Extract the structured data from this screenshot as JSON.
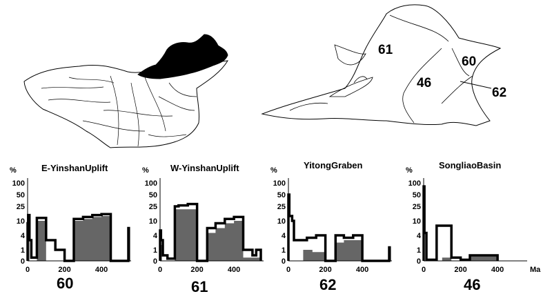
{
  "maps": {
    "regions": [
      {
        "label": "61"
      },
      {
        "label": "60"
      },
      {
        "label": "46"
      },
      {
        "label": "62"
      }
    ]
  },
  "chart_data": [
    {
      "type": "histogram-step",
      "id": "60",
      "title": "E-YinshanUplift",
      "ylabel": "%",
      "yticks": [
        "100",
        "50",
        "25",
        "10",
        "4",
        "1",
        "0"
      ],
      "xticks": [
        "0",
        "200",
        "400"
      ],
      "xlim": [
        0,
        560
      ],
      "caption": "60",
      "outline": [
        [
          0,
          0
        ],
        [
          0,
          9
        ],
        [
          3,
          9
        ],
        [
          3,
          16
        ],
        [
          10,
          16
        ],
        [
          10,
          3
        ],
        [
          20,
          3
        ],
        [
          20,
          0.3
        ],
        [
          50,
          0.3
        ],
        [
          50,
          13
        ],
        [
          100,
          13
        ],
        [
          100,
          3
        ],
        [
          150,
          3
        ],
        [
          150,
          1
        ],
        [
          200,
          1
        ],
        [
          200,
          0
        ],
        [
          250,
          0
        ],
        [
          250,
          12
        ],
        [
          300,
          12
        ],
        [
          300,
          14
        ],
        [
          350,
          14
        ],
        [
          350,
          16
        ],
        [
          400,
          16
        ],
        [
          400,
          17
        ],
        [
          450,
          17
        ],
        [
          450,
          0
        ],
        [
          545,
          0
        ],
        [
          545,
          7
        ],
        [
          548,
          7
        ],
        [
          548,
          0
        ]
      ],
      "fill": [
        [
          0,
          0
        ],
        [
          0,
          8
        ],
        [
          10,
          8
        ],
        [
          10,
          0
        ],
        [
          50,
          0
        ],
        [
          50,
          10
        ],
        [
          100,
          10
        ],
        [
          100,
          0
        ],
        [
          250,
          0
        ],
        [
          250,
          10
        ],
        [
          300,
          10
        ],
        [
          300,
          12
        ],
        [
          350,
          12
        ],
        [
          350,
          14
        ],
        [
          400,
          14
        ],
        [
          400,
          15
        ],
        [
          450,
          15
        ],
        [
          450,
          0
        ]
      ]
    },
    {
      "type": "histogram-step",
      "id": "61",
      "title": "W-YinshanUplift",
      "ylabel": "%",
      "yticks": [
        "100",
        "50",
        "25",
        "10",
        "4",
        "1",
        "0"
      ],
      "xticks": [
        "0",
        "200",
        "400"
      ],
      "xlim": [
        0,
        560
      ],
      "caption": "61",
      "outline": [
        [
          0,
          0
        ],
        [
          0,
          6
        ],
        [
          5,
          6
        ],
        [
          5,
          3
        ],
        [
          15,
          3
        ],
        [
          15,
          0.5
        ],
        [
          40,
          0.5
        ],
        [
          40,
          0.2
        ],
        [
          80,
          0.2
        ],
        [
          80,
          25
        ],
        [
          100,
          25
        ],
        [
          100,
          27
        ],
        [
          150,
          27
        ],
        [
          150,
          30
        ],
        [
          200,
          30
        ],
        [
          200,
          0
        ],
        [
          255,
          0
        ],
        [
          255,
          7
        ],
        [
          300,
          7
        ],
        [
          300,
          9
        ],
        [
          350,
          9
        ],
        [
          350,
          12
        ],
        [
          400,
          12
        ],
        [
          400,
          14
        ],
        [
          450,
          14
        ],
        [
          450,
          1
        ],
        [
          500,
          1
        ],
        [
          500,
          0.5
        ],
        [
          520,
          0.5
        ],
        [
          520,
          1
        ],
        [
          545,
          1
        ],
        [
          545,
          0
        ]
      ],
      "fill": [
        [
          0,
          0
        ],
        [
          0,
          2
        ],
        [
          10,
          2
        ],
        [
          10,
          0
        ],
        [
          80,
          0
        ],
        [
          80,
          22
        ],
        [
          200,
          22
        ],
        [
          200,
          0
        ],
        [
          255,
          0
        ],
        [
          255,
          5
        ],
        [
          300,
          5
        ],
        [
          300,
          7
        ],
        [
          350,
          7
        ],
        [
          350,
          9
        ],
        [
          400,
          9
        ],
        [
          400,
          10
        ],
        [
          450,
          10
        ],
        [
          450,
          0.3
        ],
        [
          545,
          0.3
        ],
        [
          545,
          0
        ]
      ]
    },
    {
      "type": "histogram-step",
      "id": "62",
      "title": "YitongGraben",
      "ylabel": "%",
      "yticks": [
        "100",
        "50",
        "25",
        "10",
        "4",
        "1",
        "0"
      ],
      "xticks": [
        "0",
        "200",
        "400"
      ],
      "xlim": [
        0,
        560
      ],
      "caption": "62",
      "outline": [
        [
          0,
          0
        ],
        [
          0,
          50
        ],
        [
          5,
          50
        ],
        [
          5,
          15
        ],
        [
          20,
          15
        ],
        [
          20,
          10
        ],
        [
          30,
          10
        ],
        [
          30,
          3
        ],
        [
          100,
          3
        ],
        [
          100,
          3.5
        ],
        [
          150,
          3.5
        ],
        [
          150,
          4
        ],
        [
          200,
          4
        ],
        [
          200,
          0
        ],
        [
          255,
          0
        ],
        [
          255,
          4
        ],
        [
          300,
          4
        ],
        [
          300,
          3.5
        ],
        [
          350,
          3.5
        ],
        [
          350,
          4
        ],
        [
          400,
          4
        ],
        [
          400,
          0
        ],
        [
          545,
          0
        ],
        [
          545,
          1.5
        ],
        [
          548,
          1.5
        ],
        [
          548,
          0
        ]
      ],
      "fill": [
        [
          80,
          0
        ],
        [
          80,
          1
        ],
        [
          130,
          1
        ],
        [
          130,
          0.8
        ],
        [
          200,
          0.8
        ],
        [
          200,
          0
        ],
        [
          255,
          0
        ],
        [
          255,
          2.5
        ],
        [
          300,
          2.5
        ],
        [
          300,
          3
        ],
        [
          400,
          3
        ],
        [
          400,
          0
        ]
      ]
    },
    {
      "type": "histogram-step",
      "id": "46",
      "title": "SongliaoBasin",
      "ylabel": "%",
      "yticks": [
        "100",
        "50",
        "25",
        "10",
        "4",
        "1",
        "0"
      ],
      "xticks": [
        "0",
        "200",
        "400"
      ],
      "xunit": "Ma",
      "xlim": [
        0,
        560
      ],
      "caption": "46",
      "outline": [
        [
          0,
          0
        ],
        [
          0,
          85
        ],
        [
          4,
          85
        ],
        [
          4,
          5
        ],
        [
          15,
          5
        ],
        [
          15,
          0.1
        ],
        [
          70,
          0.1
        ],
        [
          70,
          8
        ],
        [
          150,
          8
        ],
        [
          150,
          0.3
        ],
        [
          200,
          0.3
        ],
        [
          200,
          0.1
        ],
        [
          250,
          0.1
        ],
        [
          250,
          0.5
        ],
        [
          400,
          0.5
        ],
        [
          400,
          0
        ]
      ],
      "fill": [
        [
          100,
          0
        ],
        [
          100,
          0.3
        ],
        [
          150,
          0.3
        ],
        [
          150,
          0
        ],
        [
          250,
          0
        ],
        [
          250,
          0.4
        ],
        [
          400,
          0.4
        ],
        [
          400,
          0
        ]
      ]
    }
  ]
}
